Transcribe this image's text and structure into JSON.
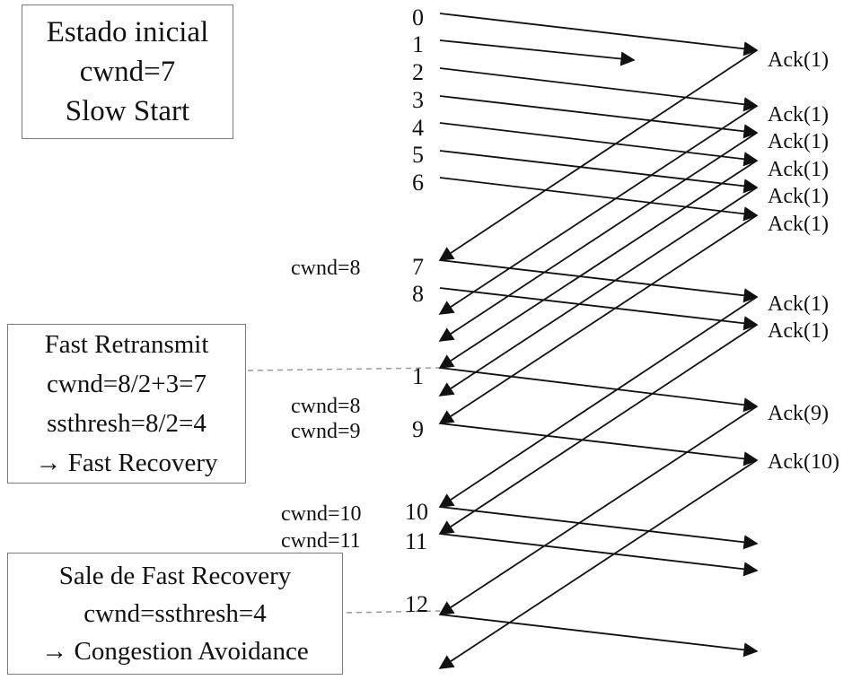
{
  "boxes": {
    "initial": [
      "Estado inicial",
      "cwnd=7",
      "Slow Start"
    ],
    "fast_retransmit": [
      "Fast Retransmit",
      "cwnd=8/2+3=7",
      "ssthresh=8/2=4",
      "→ Fast Recovery"
    ],
    "exit_recovery": [
      "Sale de Fast Recovery",
      "cwnd=ssthresh=4",
      "→ Congestion Avoidance"
    ]
  },
  "sender_labels": [
    "0",
    "1",
    "2",
    "3",
    "4",
    "5",
    "6",
    "7",
    "8",
    "1",
    "9",
    "10",
    "11",
    "12"
  ],
  "cwnd_labels": [
    "cwnd=8",
    "cwnd=8",
    "cwnd=9",
    "cwnd=10",
    "cwnd=11"
  ],
  "ack_labels": [
    "Ack(1)",
    "Ack(1)",
    "Ack(1)",
    "Ack(1)",
    "Ack(1)",
    "Ack(1)",
    "Ack(1)",
    "Ack(1)",
    "Ack(9)",
    "Ack(10)"
  ],
  "colors": {
    "line": "#111111",
    "box_border": "#7a7a7a",
    "dashed": "#999999"
  }
}
